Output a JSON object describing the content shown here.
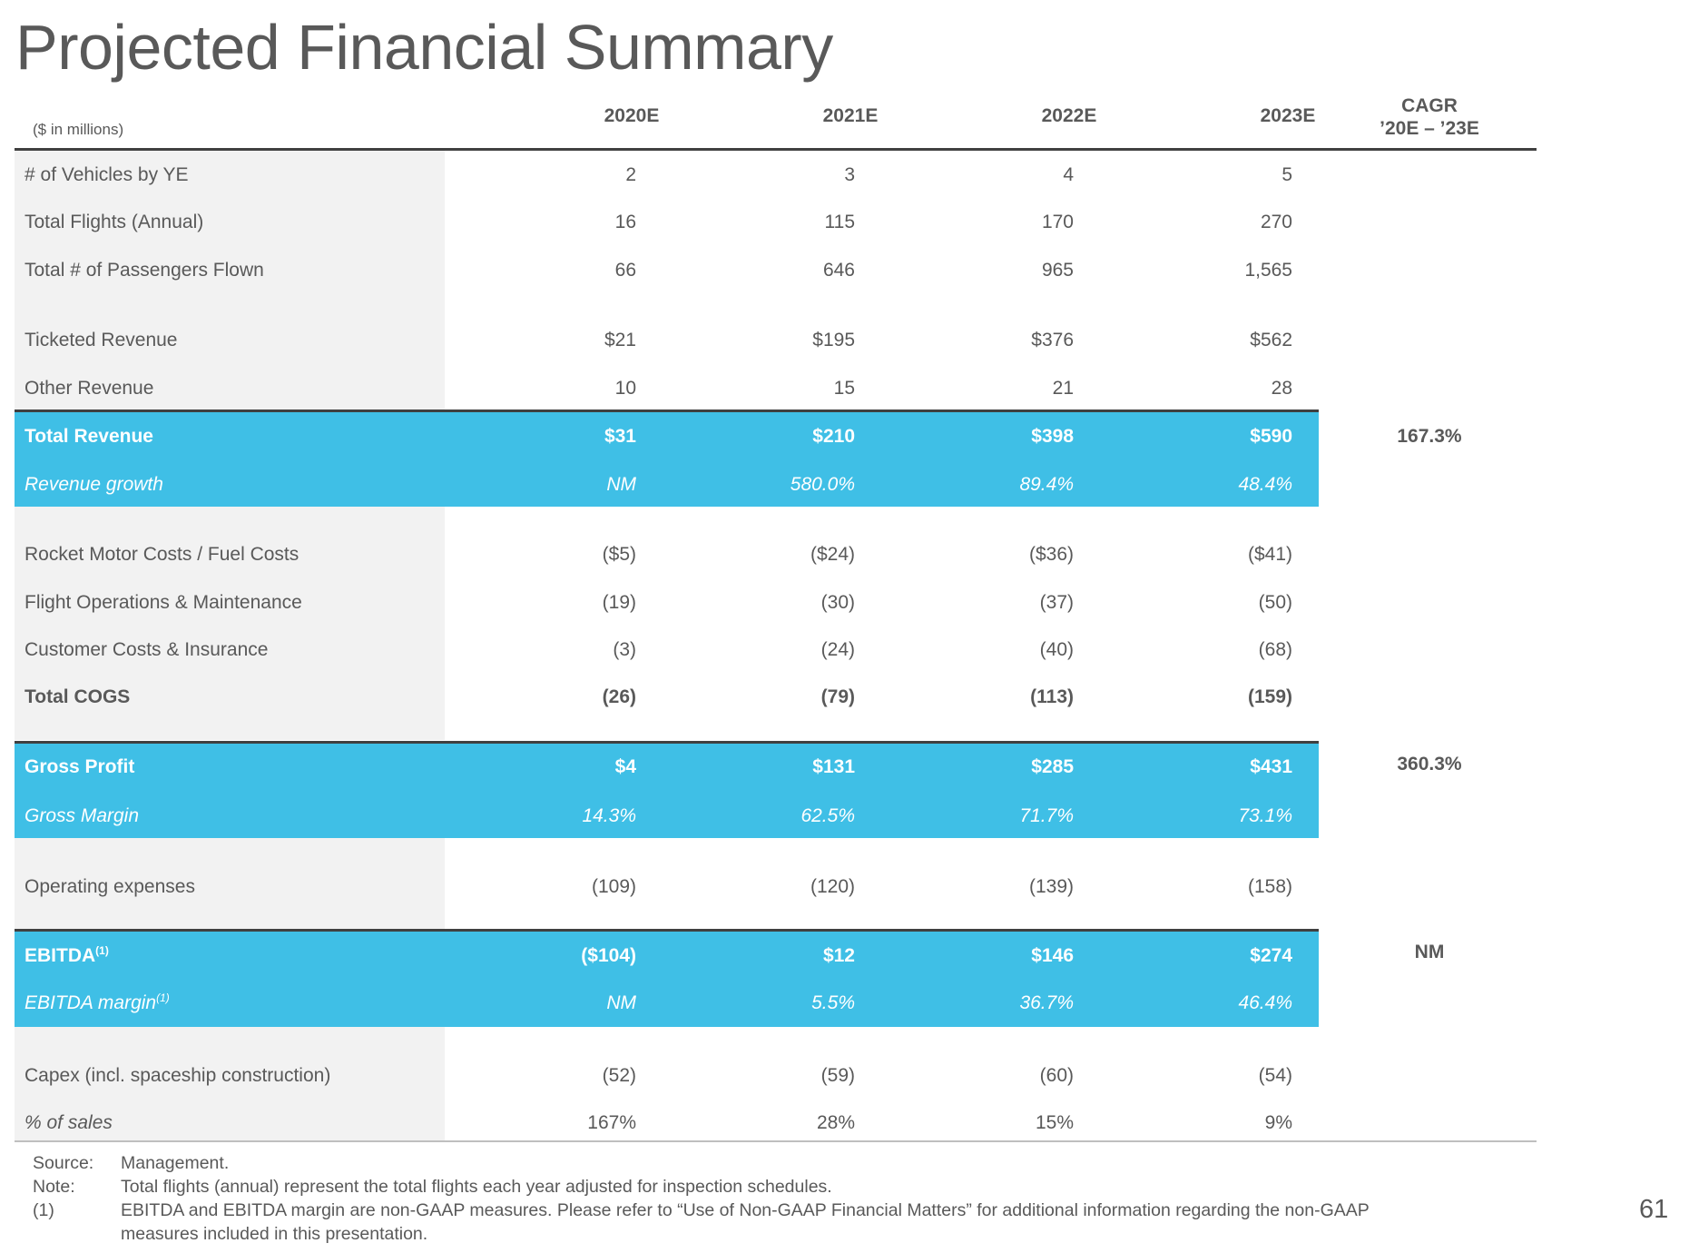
{
  "title": "Projected Financial Summary",
  "units": "($ in millions)",
  "columns": [
    "2020E",
    "2021E",
    "2022E",
    "2023E"
  ],
  "cagr_header": [
    "CAGR",
    "’20E – ’23E"
  ],
  "rows": {
    "vehicles": {
      "label": "# of Vehicles by YE",
      "values": [
        "2",
        "3",
        "4",
        "5"
      ]
    },
    "flights": {
      "label": "Total Flights (Annual)",
      "values": [
        "16",
        "115",
        "170",
        "270"
      ]
    },
    "passengers": {
      "label": "Total # of Passengers Flown",
      "values": [
        "66",
        "646",
        "965",
        "1,565"
      ]
    },
    "ticketed_revenue": {
      "label": "Ticketed Revenue",
      "values": [
        "$21",
        "$195",
        "$376",
        "$562"
      ]
    },
    "other_revenue": {
      "label": "Other Revenue",
      "values": [
        "10",
        "15",
        "21",
        "28"
      ]
    },
    "total_revenue": {
      "label": "Total Revenue",
      "values": [
        "$31",
        "$210",
        "$398",
        "$590"
      ],
      "cagr": "167.3%"
    },
    "revenue_growth": {
      "label": "Revenue growth",
      "values": [
        "NM",
        "580.0%",
        "89.4%",
        "48.4%"
      ]
    },
    "rocket_costs": {
      "label": "Rocket Motor Costs / Fuel Costs",
      "values": [
        "($5)",
        "($24)",
        "($36)",
        "($41)"
      ]
    },
    "flight_ops": {
      "label": "Flight Operations & Maintenance",
      "values": [
        "(19)",
        "(30)",
        "(37)",
        "(50)"
      ]
    },
    "customer_costs": {
      "label": "Customer Costs & Insurance",
      "values": [
        "(3)",
        "(24)",
        "(40)",
        "(68)"
      ]
    },
    "total_cogs": {
      "label": "Total COGS",
      "values": [
        "(26)",
        "(79)",
        "(113)",
        "(159)"
      ]
    },
    "gross_profit": {
      "label": "Gross Profit",
      "values": [
        "$4",
        "$131",
        "$285",
        "$431"
      ],
      "cagr": "360.3%"
    },
    "gross_margin": {
      "label": "Gross Margin",
      "values": [
        "14.3%",
        "62.5%",
        "71.7%",
        "73.1%"
      ]
    },
    "opex": {
      "label": "Operating expenses",
      "values": [
        "(109)",
        "(120)",
        "(139)",
        "(158)"
      ]
    },
    "ebitda": {
      "label": "EBITDA",
      "footnote": "(1)",
      "values": [
        "($104)",
        "$12",
        "$146",
        "$274"
      ],
      "cagr": "NM"
    },
    "ebitda_margin": {
      "label": "EBITDA margin",
      "footnote": "(1)",
      "values": [
        "NM",
        "5.5%",
        "36.7%",
        "46.4%"
      ]
    },
    "capex": {
      "label": "Capex (incl. spaceship construction)",
      "values": [
        "(52)",
        "(59)",
        "(60)",
        "(54)"
      ]
    },
    "pct_sales": {
      "label": "% of sales",
      "values": [
        "167%",
        "28%",
        "15%",
        "9%"
      ]
    }
  },
  "notes": {
    "source_key": "Source:",
    "source_text": "Management.",
    "note_key": "Note:",
    "note_text": "Total flights (annual) represent the total flights each year adjusted for inspection schedules.",
    "fn1_key": "(1)",
    "fn1_text_line1": "EBITDA and EBITDA margin are non-GAAP measures. Please refer to “Use of Non-GAAP Financial Matters” for additional information regarding the non-GAAP",
    "fn1_text_line2": "measures included in this presentation."
  },
  "page_number": "61",
  "colors": {
    "highlight_band": "#3fbfe6",
    "label_shade": "#f2f2f2",
    "text": "#595959",
    "rule": "#404040"
  }
}
